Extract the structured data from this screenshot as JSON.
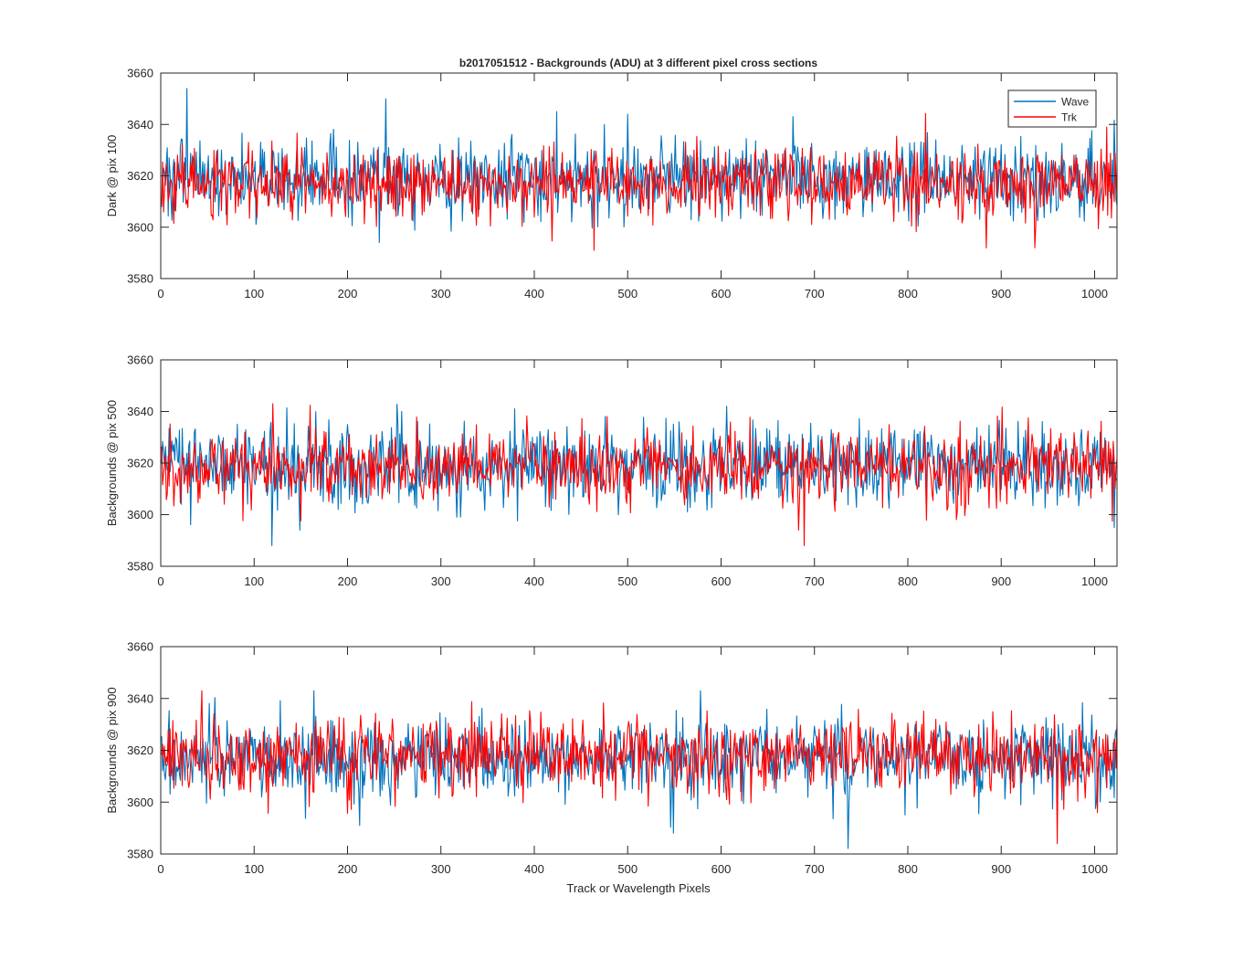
{
  "figure": {
    "title": "b2017051512 - Backgrounds (ADU) at 3 different pixel cross sections",
    "xlabel": "Track or Wavelength Pixels"
  },
  "legend": {
    "position": "top-right of first panel",
    "entries": [
      {
        "label": "Wave",
        "color": "#0072BD"
      },
      {
        "label": "Trk",
        "color": "#FF0000"
      }
    ]
  },
  "chart_data": [
    {
      "type": "line",
      "ylabel": "Dark @ pix 100",
      "xlim": [
        0,
        1024
      ],
      "ylim": [
        3580,
        3660
      ],
      "xticks": [
        0,
        100,
        200,
        300,
        400,
        500,
        600,
        700,
        800,
        900,
        1000
      ],
      "yticks": [
        3580,
        3600,
        3620,
        3640,
        3660
      ],
      "n_points": 1024,
      "series": [
        {
          "name": "Wave",
          "color": "#0072BD",
          "mean": 3619,
          "std": 7.5,
          "seed": 101,
          "spikes": [
            [
              27,
              3654
            ],
            [
              240,
              3650
            ],
            [
              233,
              3594
            ],
            [
              423,
              3645
            ],
            [
              499,
              3644
            ],
            [
              178,
              3622
            ]
          ]
        },
        {
          "name": "Trk",
          "color": "#FF0000",
          "mean": 3617,
          "std": 6.8,
          "seed": 202,
          "spikes": [
            [
              463,
              3591
            ],
            [
              935,
              3592
            ],
            [
              1012,
              3639
            ]
          ]
        }
      ]
    },
    {
      "type": "line",
      "ylabel": "Backgrounds @ pix 500",
      "xlim": [
        0,
        1024
      ],
      "ylim": [
        3580,
        3660
      ],
      "xticks": [
        0,
        100,
        200,
        300,
        400,
        500,
        600,
        700,
        800,
        900,
        1000
      ],
      "yticks": [
        3580,
        3600,
        3620,
        3640,
        3660
      ],
      "n_points": 1024,
      "series": [
        {
          "name": "Wave",
          "color": "#0072BD",
          "mean": 3619,
          "std": 8.0,
          "seed": 303,
          "spikes": [
            [
              118,
              3588
            ],
            [
              148,
              3594
            ],
            [
              378,
              3641
            ],
            [
              605,
              3642
            ],
            [
              1020,
              3595
            ]
          ]
        },
        {
          "name": "Trk",
          "color": "#FF0000",
          "mean": 3618,
          "std": 7.0,
          "seed": 404,
          "spikes": [
            [
              119,
              3643
            ],
            [
              688,
              3588
            ],
            [
              682,
              3594
            ]
          ]
        }
      ]
    },
    {
      "type": "line",
      "ylabel": "Backgrounds @ pix 900",
      "xlim": [
        0,
        1024
      ],
      "ylim": [
        3580,
        3660
      ],
      "xticks": [
        0,
        100,
        200,
        300,
        400,
        500,
        600,
        700,
        800,
        900,
        1000
      ],
      "yticks": [
        3580,
        3600,
        3620,
        3640,
        3660
      ],
      "n_points": 1024,
      "series": [
        {
          "name": "Wave",
          "color": "#0072BD",
          "mean": 3617,
          "std": 7.5,
          "seed": 505,
          "spikes": [
            [
              163,
              3643
            ],
            [
              212,
              3591
            ],
            [
              548,
              3588
            ],
            [
              577,
              3643
            ]
          ]
        },
        {
          "name": "Trk",
          "color": "#FF0000",
          "mean": 3618,
          "std": 7.0,
          "seed": 606,
          "spikes": [
            [
              43,
              3643
            ],
            [
              959,
              3584
            ],
            [
              1002,
              3596
            ]
          ]
        }
      ]
    }
  ]
}
